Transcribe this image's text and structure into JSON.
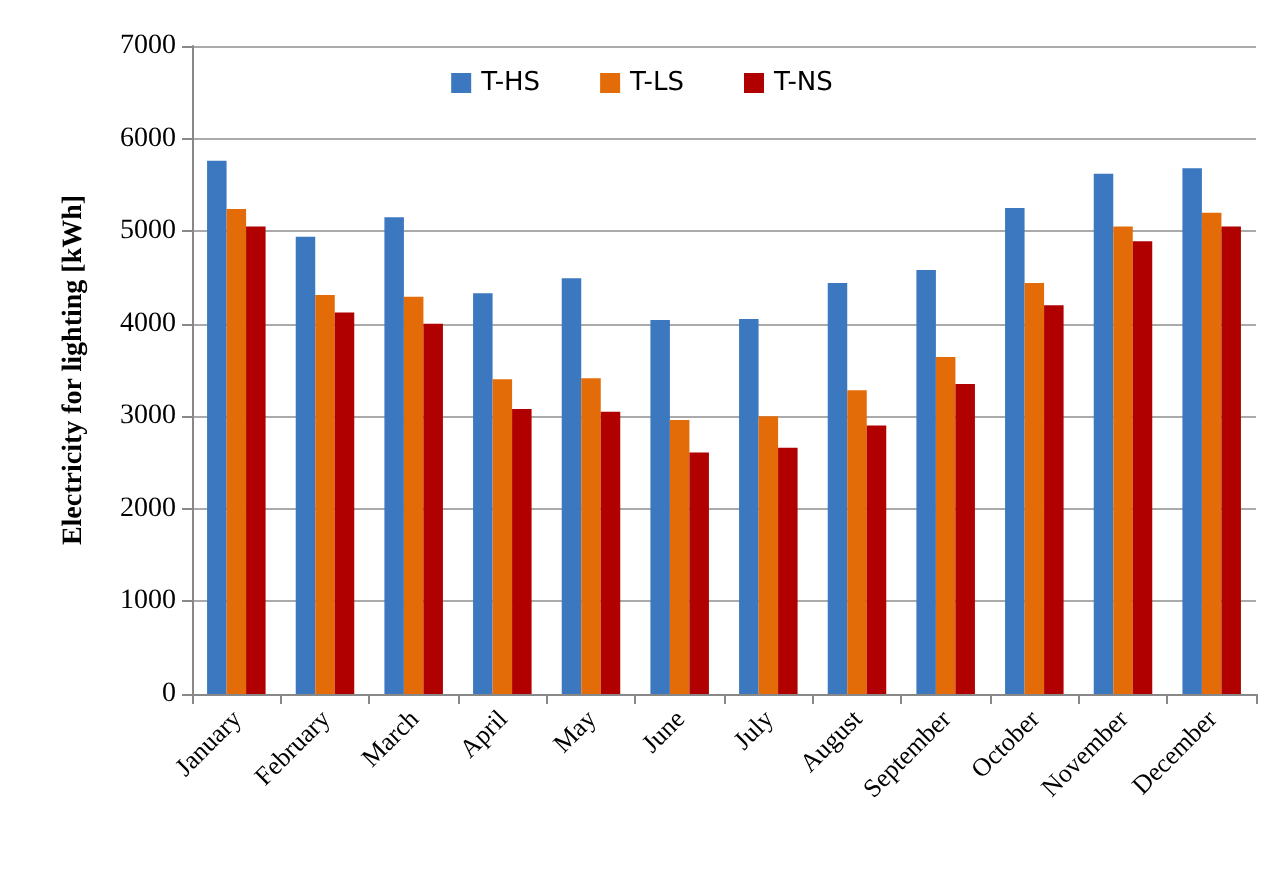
{
  "chart_data": {
    "type": "bar",
    "ylabel": "Electricity for lighting [kWh]",
    "categories": [
      "January",
      "February",
      "March",
      "April",
      "May",
      "June",
      "July",
      "August",
      "September",
      "October",
      "November",
      "December"
    ],
    "series": [
      {
        "name": "T-HS",
        "color": "#3b78c0",
        "values": [
          5760,
          4940,
          5150,
          4330,
          4490,
          4040,
          4050,
          4440,
          4580,
          5250,
          5620,
          5680
        ]
      },
      {
        "name": "T-LS",
        "color": "#e36c09",
        "values": [
          5240,
          4310,
          4290,
          3400,
          3410,
          2960,
          3000,
          3280,
          3640,
          4440,
          5050,
          5200
        ]
      },
      {
        "name": "T-NS",
        "color": "#b00000",
        "values": [
          5050,
          4120,
          4000,
          3080,
          3050,
          2610,
          2660,
          2900,
          3350,
          4200,
          4890,
          5050
        ]
      }
    ],
    "ylim": [
      0,
      7000
    ],
    "yticks": [
      0,
      1000,
      2000,
      3000,
      4000,
      5000,
      6000,
      7000
    ],
    "grid": "y",
    "legend": "top"
  }
}
